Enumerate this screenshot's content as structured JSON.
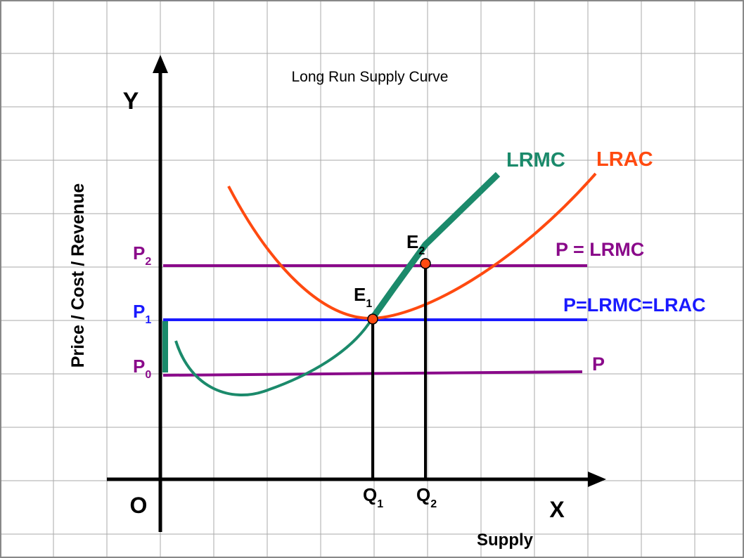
{
  "title": "Long Run Supply Curve",
  "axes": {
    "origin": "O",
    "x_axis": "X",
    "y_axis": "Y",
    "x_label": "Supply",
    "y_label": "Price / Cost / Revenue"
  },
  "price_levels": {
    "p0": {
      "base": "P",
      "sub": "0"
    },
    "p1": {
      "base": "P",
      "sub": "1"
    },
    "p2": {
      "base": "P",
      "sub": "2"
    }
  },
  "quantities": {
    "q1": {
      "base": "Q",
      "sub": "1"
    },
    "q2": {
      "base": "Q",
      "sub": "2"
    }
  },
  "equilibria": {
    "e1": {
      "base": "E",
      "sub": "1"
    },
    "e2": {
      "base": "E",
      "sub": "2"
    }
  },
  "curve_labels": {
    "lrmc": "LRMC",
    "lrac": "LRAC"
  },
  "line_labels": {
    "p2_line": "P = LRMC",
    "p1_line": "P=LRMC=LRAC",
    "p0_line": "P"
  },
  "colors": {
    "grid": "#aaaaaa",
    "axis": "#000000",
    "lrmc": "#1b8a6b",
    "lrac": "#ff4a10",
    "price_purple": "#8a0a8a",
    "price_blue": "#1a1aff",
    "point_fill": "#ff4a10"
  }
}
